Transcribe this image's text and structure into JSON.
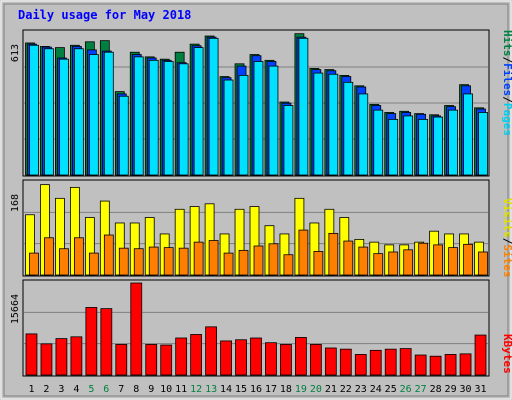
{
  "title": "Daily usage for May 2018",
  "colors": {
    "frame_bg": "#c0c0c0",
    "title": "#0000ff",
    "hits": "#008040",
    "files": "#0040ff",
    "pages": "#00e0ff",
    "visits": "#ffff00",
    "sites": "#ff8000",
    "kbytes": "#ff0000",
    "weekend_label": "#008040",
    "weekday_label": "#000000"
  },
  "labels": {
    "top_max": "613",
    "mid_max": "168",
    "bot_max": "15664",
    "pages": "Pages",
    "files": "Files",
    "hits": "Hits",
    "sites": "Sites",
    "visits": "Visits",
    "kbytes": "KBytes",
    "sep": "/"
  },
  "chart_data": {
    "type": "bar",
    "title": "Daily usage for May 2018",
    "categories": [
      "1",
      "2",
      "3",
      "4",
      "5",
      "6",
      "7",
      "8",
      "9",
      "10",
      "11",
      "12",
      "13",
      "14",
      "15",
      "16",
      "17",
      "18",
      "19",
      "20",
      "21",
      "22",
      "23",
      "24",
      "25",
      "26",
      "27",
      "28",
      "29",
      "30",
      "31"
    ],
    "weekend_days": [
      "5",
      "6",
      "12",
      "13",
      "19",
      "20",
      "26",
      "27"
    ],
    "panels": [
      {
        "name": "top",
        "max_label": 613,
        "series": [
          {
            "name": "Hits",
            "values": [
              570,
              555,
              550,
              560,
              575,
              580,
              360,
              530,
              510,
              500,
              530,
              565,
              600,
              425,
              480,
              520,
              495,
              315,
              610,
              460,
              455,
              430,
              385,
              305,
              270,
              275,
              265,
              260,
              300,
              390,
              290
            ]
          },
          {
            "name": "Files",
            "values": [
              565,
              552,
              505,
              555,
              540,
              535,
              350,
              520,
              505,
              495,
              485,
              558,
              595,
              420,
              470,
              515,
              490,
              310,
              595,
              455,
              450,
              425,
              380,
              300,
              265,
              270,
              262,
              255,
              295,
              385,
              285
            ]
          },
          {
            "name": "Pages",
            "values": [
              560,
              545,
              500,
              545,
              520,
              530,
              340,
              510,
              495,
              490,
              480,
              550,
              590,
              410,
              430,
              490,
              470,
              300,
              590,
              440,
              435,
              400,
              350,
              280,
              240,
              255,
              240,
              250,
              280,
              350,
              270
            ]
          }
        ]
      },
      {
        "name": "middle",
        "max_label": 168,
        "series": [
          {
            "name": "Visits",
            "values": [
              110,
              165,
              140,
              160,
              105,
              135,
              95,
              95,
              105,
              75,
              120,
              125,
              130,
              75,
              120,
              125,
              90,
              75,
              140,
              95,
              120,
              105,
              65,
              60,
              55,
              55,
              60,
              80,
              75,
              75,
              60
            ]
          },
          {
            "name": "Sites",
            "values": [
              40,
              68,
              48,
              68,
              40,
              73,
              49,
              48,
              51,
              50,
              49,
              60,
              63,
              40,
              45,
              53,
              57,
              37,
              82,
              43,
              76,
              62,
              51,
              39,
              42,
              46,
              58,
              55,
              50,
              56,
              42
            ]
          }
        ]
      },
      {
        "name": "bottom",
        "max_label": 15664,
        "series": [
          {
            "name": "KBytes",
            "values": [
              7000,
              5300,
              6200,
              6500,
              11500,
              11300,
              5200,
              15664,
              5200,
              5100,
              6300,
              6900,
              8200,
              5800,
              6000,
              6300,
              5500,
              5200,
              6400,
              5200,
              4600,
              4400,
              3500,
              4200,
              4400,
              4500,
              3400,
              3200,
              3500,
              3600,
              6800
            ]
          }
        ]
      }
    ]
  }
}
